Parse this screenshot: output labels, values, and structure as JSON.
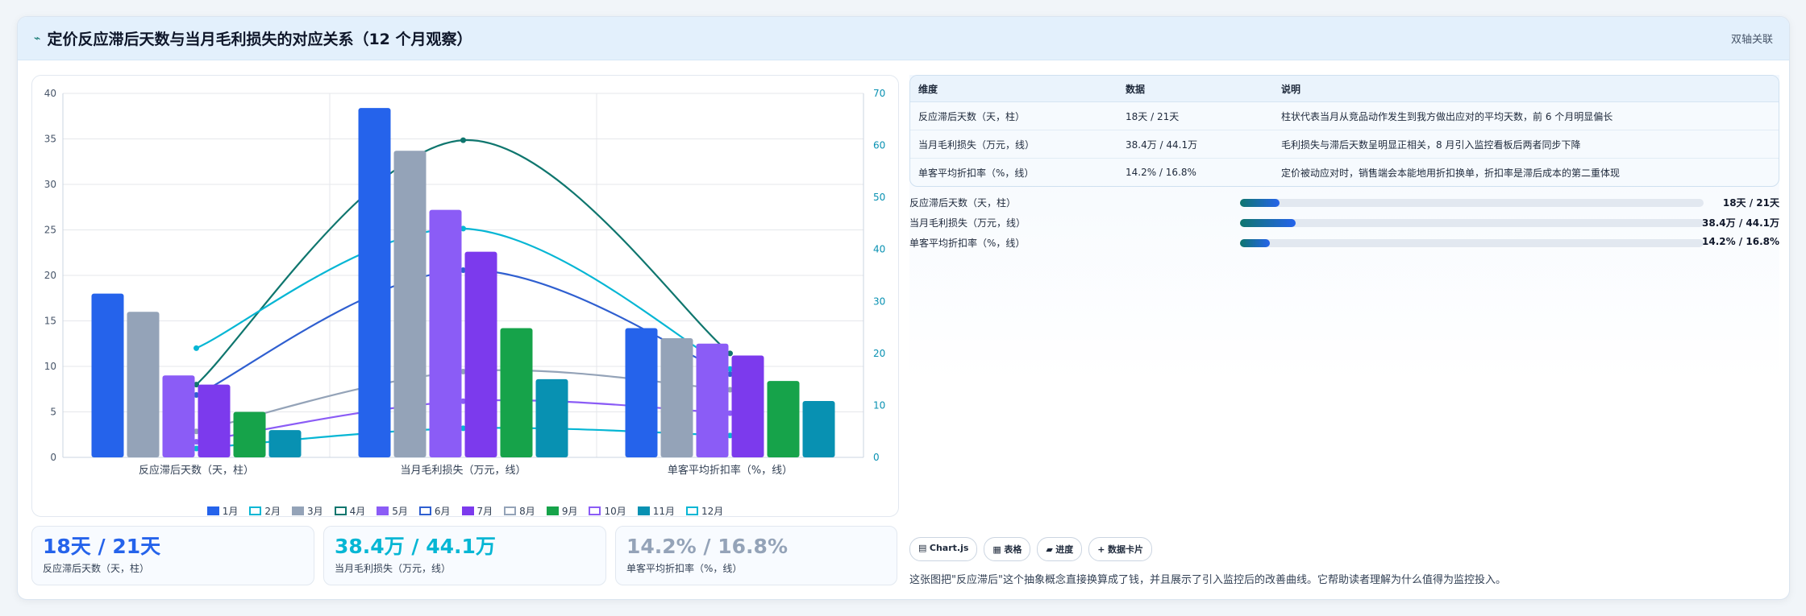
{
  "header": {
    "icon": "trend-line-icon",
    "title": "定价反应滞后天数与当月毛利损失的对应关系（12 个月观察）",
    "badge": "双轴关联"
  },
  "chart_data": {
    "type": "bar",
    "categories": [
      "反应滞后天数（天，柱）",
      "当月毛利损失（万元，线）",
      "单客平均折扣率（%，线）"
    ],
    "y_left": {
      "min": 0,
      "max": 40,
      "ticks": [
        0,
        5,
        10,
        15,
        20,
        25,
        30,
        35,
        40
      ]
    },
    "y_right": {
      "min": 0,
      "max": 70,
      "ticks": [
        0,
        10,
        20,
        30,
        40,
        50,
        60,
        70
      ]
    },
    "grid": true,
    "legend_position": "bottom",
    "series": [
      {
        "name": "1月",
        "kind": "bar",
        "axis": "left",
        "color": "#2563eb",
        "values": [
          18,
          38.4,
          14.2
        ]
      },
      {
        "name": "2月",
        "kind": "line",
        "axis": "right",
        "color": "#06b6d4",
        "values": [
          1.7,
          5.6,
          4.2
        ]
      },
      {
        "name": "3月",
        "kind": "bar",
        "axis": "left",
        "color": "#94a3b8",
        "values": [
          16,
          33.7,
          13.1
        ]
      },
      {
        "name": "4月",
        "kind": "line",
        "axis": "right",
        "color": "#0f766e",
        "values": [
          14,
          61,
          20
        ]
      },
      {
        "name": "5月",
        "kind": "bar",
        "axis": "left",
        "color": "#8b5cf6",
        "values": [
          9,
          27.2,
          12.5
        ]
      },
      {
        "name": "6月",
        "kind": "line",
        "axis": "right",
        "color": "#2f5fd0",
        "values": [
          12,
          36,
          16
        ]
      },
      {
        "name": "7月",
        "kind": "bar",
        "axis": "left",
        "color": "#7c3aed",
        "values": [
          8,
          22.6,
          11.2
        ]
      },
      {
        "name": "8月",
        "kind": "line",
        "axis": "right",
        "color": "#94a3b8",
        "values": [
          5,
          16.5,
          13
        ]
      },
      {
        "name": "9月",
        "kind": "bar",
        "axis": "left",
        "color": "#16a34a",
        "values": [
          5,
          14.2,
          8.4
        ]
      },
      {
        "name": "10月",
        "kind": "line",
        "axis": "right",
        "color": "#8b5cf6",
        "values": [
          3,
          10.8,
          8.5
        ]
      },
      {
        "name": "11月",
        "kind": "bar",
        "axis": "left",
        "color": "#0891b2",
        "values": [
          3,
          8.6,
          6.2
        ]
      },
      {
        "name": "12月",
        "kind": "line",
        "axis": "right",
        "color": "#06b6d4",
        "values": [
          21,
          44,
          17
        ]
      }
    ]
  },
  "table": {
    "headers": [
      "维度",
      "数据",
      "说明"
    ],
    "rows": [
      [
        "反应滞后天数（天，柱）",
        "18天 / 21天",
        "柱状代表当月从竞品动作发生到我方做出应对的平均天数，前 6 个月明显偏长"
      ],
      [
        "当月毛利损失（万元，线）",
        "38.4万 / 44.1万",
        "毛利损失与滞后天数呈明显正相关，8 月引入监控看板后两者同步下降"
      ],
      [
        "单客平均折扣率（%，线）",
        "14.2% / 16.8%",
        "定价被动应对时，销售端会本能地用折扣换单，折扣率是滞后成本的第二重体现"
      ]
    ]
  },
  "progress": [
    {
      "label": "反应滞后天数（天，柱）",
      "value": "18天 / 21天",
      "fraction": 0.086,
      "start": 0.0
    },
    {
      "label": "当月毛利损失（万元，线）",
      "value": "38.4万 / 44.1万",
      "fraction": 0.12,
      "start": 0.0
    },
    {
      "label": "单客平均折扣率（%，线）",
      "value": "14.2% / 16.8%",
      "fraction": 0.065,
      "start": 0.0
    }
  ],
  "stats": [
    {
      "value": "18天 / 21天",
      "label": "反应滞后天数（天，柱）",
      "color": "#2563eb"
    },
    {
      "value": "38.4万 / 44.1万",
      "label": "当月毛利损失（万元，线）",
      "color": "#06b6d4"
    },
    {
      "value": "14.2% / 16.8%",
      "label": "单客平均折扣率（%，线）",
      "color": "#94a3b8"
    }
  ],
  "tags": [
    {
      "icon": "chart-icon",
      "glyph": "▤",
      "label": "Chart.js"
    },
    {
      "icon": "table-icon",
      "glyph": "▦",
      "label": "表格"
    },
    {
      "icon": "progress-icon",
      "glyph": "▰",
      "label": "进度"
    },
    {
      "icon": "plus-icon",
      "glyph": "+",
      "label": "数据卡片"
    }
  ],
  "description": "这张图把\"反应滞后\"这个抽象概念直接换算成了钱，并且展示了引入监控后的改善曲线。它帮助读者理解为什么值得为监控投入。"
}
